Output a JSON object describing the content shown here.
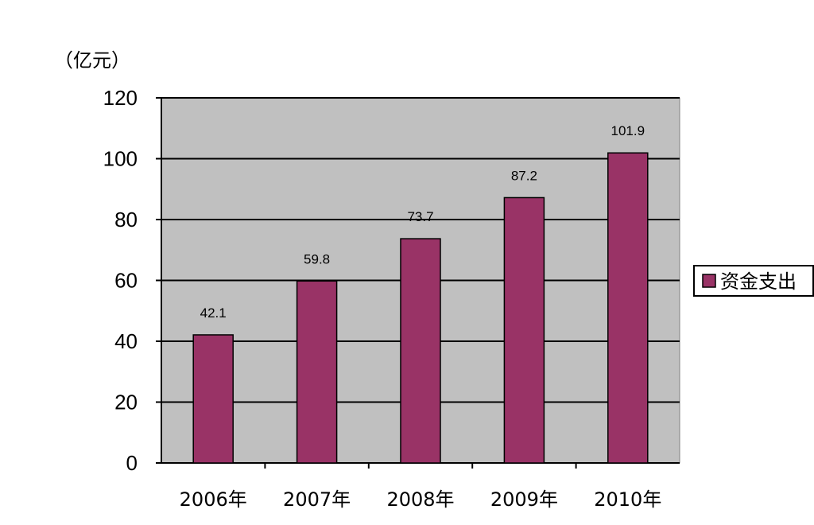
{
  "chart_data": {
    "type": "bar",
    "unit_label": "（亿元）",
    "categories": [
      "2006年",
      "2007年",
      "2008年",
      "2009年",
      "2010年"
    ],
    "series": [
      {
        "name": "资金支出",
        "values": [
          42.1,
          59.8,
          73.7,
          87.2,
          101.9
        ],
        "color": "#993366"
      }
    ],
    "data_labels": [
      "42.1",
      "59.8",
      "73.7",
      "87.2",
      "101.9"
    ],
    "yticks": [
      "0",
      "20",
      "40",
      "60",
      "80",
      "100",
      "120"
    ],
    "ylim": [
      0,
      120
    ],
    "grid": true,
    "plot_background": "#c0c0c0",
    "legend_position": "right"
  }
}
